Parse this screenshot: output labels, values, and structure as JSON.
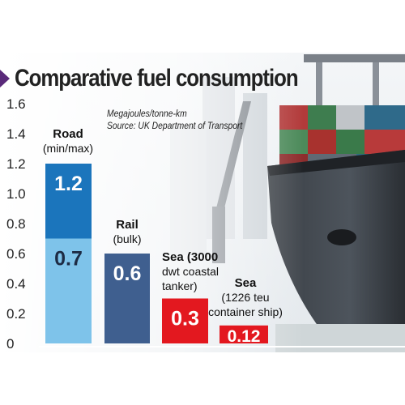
{
  "header": {
    "title": "Comparative fuel consumption"
  },
  "note": {
    "units": "Megajoules/tonne-km",
    "source": "Source: UK Department of Transport"
  },
  "chart_data": {
    "type": "bar",
    "title": "Comparative fuel consumption",
    "subtitle": "Megajoules/tonne-km",
    "xlabel": "",
    "ylabel": "",
    "ylim": [
      0,
      1.6
    ],
    "yticks": [
      "0",
      "0.2",
      "0.4",
      "0.6",
      "0.8",
      "1.0",
      "1.2",
      "1.4",
      "1.6"
    ],
    "grid": false,
    "categories": [
      {
        "label_lines": [
          "Road",
          "(min/max)"
        ],
        "values": [
          0.7,
          1.2
        ],
        "value_labels": [
          "0.7",
          "1.2"
        ],
        "colors": [
          "#7ec3ea",
          "#1b75bc"
        ]
      },
      {
        "label_lines": [
          "Rail",
          "(bulk)"
        ],
        "values": [
          0.6
        ],
        "value_labels": [
          "0.6"
        ],
        "colors": [
          "#3f5f8f"
        ]
      },
      {
        "label_lines": [
          "Sea (3000",
          "dwt coastal",
          "tanker)"
        ],
        "values": [
          0.3
        ],
        "value_labels": [
          "0.3"
        ],
        "colors": [
          "#e3181f"
        ]
      },
      {
        "label_lines": [
          "Sea",
          "(1226 teu",
          "container ship)"
        ],
        "values": [
          0.12
        ],
        "value_labels": [
          "0.12"
        ],
        "colors": [
          "#e3181f"
        ]
      }
    ],
    "colors": {
      "road_min": "#7ec3ea",
      "road_max": "#1b75bc",
      "rail": "#3f5f8f",
      "sea": "#e3181f",
      "title_marker": "#5a2a7a"
    }
  }
}
